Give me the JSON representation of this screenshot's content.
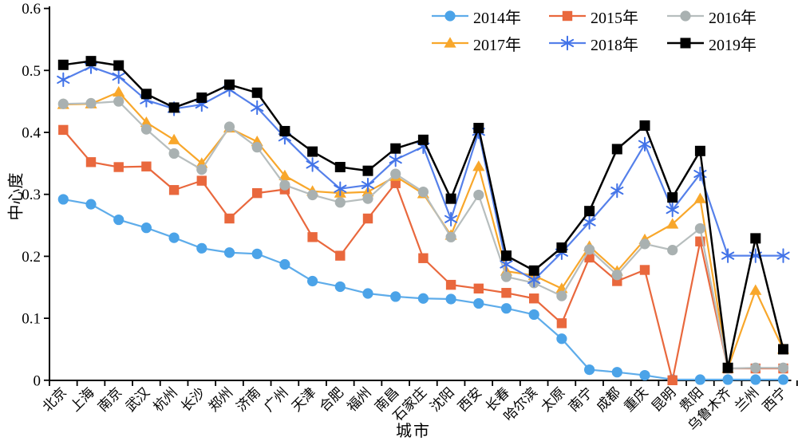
{
  "figure": {
    "background": "#ffffff",
    "axis_color": "#000000",
    "text_color": "#000000"
  },
  "chart_data": {
    "type": "line",
    "title": "",
    "xlabel": "城市",
    "ylabel": "中心度",
    "ylim": [
      0,
      0.6
    ],
    "yticks": [
      "0",
      "0.1",
      "0.2",
      "0.3",
      "0.4",
      "0.5",
      "0.6"
    ],
    "grid": false,
    "legend_position": "top-right",
    "categories": [
      "北京",
      "上海",
      "南京",
      "武汉",
      "杭州",
      "长沙",
      "郑州",
      "济南",
      "广州",
      "天津",
      "合肥",
      "福州",
      "南昌",
      "石家庄",
      "沈阳",
      "西安",
      "长春",
      "哈尔滨",
      "太原",
      "南宁",
      "成都",
      "重庆",
      "昆明",
      "贵阳",
      "乌鲁木齐",
      "兰州",
      "西宁"
    ],
    "series": [
      {
        "name": "2014年",
        "marker": "circle",
        "color": "#4BA3E8",
        "line_color": "#5EACEA",
        "values": [
          0.292,
          0.284,
          0.259,
          0.246,
          0.23,
          0.213,
          0.206,
          0.204,
          0.187,
          0.16,
          0.151,
          0.14,
          0.135,
          0.132,
          0.131,
          0.124,
          0.116,
          0.106,
          0.067,
          0.017,
          0.013,
          0.008,
          0.001,
          0.001,
          0.001,
          0.001,
          0.001
        ]
      },
      {
        "name": "2015年",
        "marker": "square",
        "color": "#E9683D",
        "line_color": "#E9683D",
        "values": [
          0.404,
          0.352,
          0.344,
          0.345,
          0.307,
          0.322,
          0.261,
          0.302,
          0.308,
          0.231,
          0.201,
          0.261,
          0.318,
          0.197,
          0.154,
          0.148,
          0.141,
          0.132,
          0.092,
          0.198,
          0.16,
          0.178,
          0.0,
          0.224,
          0.019,
          0.019,
          0.019
        ]
      },
      {
        "name": "2016年",
        "marker": "circle",
        "color": "#A9B1B1",
        "line_color": "#B7BEBE",
        "values": [
          0.446,
          0.447,
          0.45,
          0.405,
          0.366,
          0.34,
          0.409,
          0.376,
          0.315,
          0.299,
          0.287,
          0.293,
          0.333,
          0.304,
          0.231,
          0.299,
          0.167,
          0.157,
          0.136,
          0.211,
          0.17,
          0.22,
          0.21,
          0.245,
          0.019,
          0.02,
          0.02
        ]
      },
      {
        "name": "2017年",
        "marker": "triangle",
        "color": "#F8A72B",
        "line_color": "#F8A72B",
        "values": [
          0.445,
          0.446,
          0.465,
          0.416,
          0.388,
          0.35,
          0.407,
          0.385,
          0.33,
          0.305,
          0.302,
          0.304,
          0.329,
          0.301,
          0.234,
          0.345,
          0.176,
          0.169,
          0.148,
          0.216,
          0.176,
          0.227,
          0.252,
          0.293,
          0.019,
          0.145,
          0.05
        ]
      },
      {
        "name": "2018年",
        "marker": "asterisk",
        "color": "#4273E8",
        "line_color": "#5580EA",
        "values": [
          0.485,
          0.506,
          0.49,
          0.452,
          0.438,
          0.445,
          0.469,
          0.44,
          0.392,
          0.348,
          0.309,
          0.315,
          0.356,
          0.377,
          0.26,
          0.401,
          0.187,
          0.162,
          0.206,
          0.255,
          0.306,
          0.381,
          0.275,
          0.333,
          0.201,
          0.201,
          0.201
        ]
      },
      {
        "name": "2019年",
        "marker": "square",
        "color": "#000000",
        "line_color": "#000000",
        "values": [
          0.509,
          0.515,
          0.508,
          0.462,
          0.44,
          0.456,
          0.477,
          0.464,
          0.402,
          0.369,
          0.344,
          0.338,
          0.374,
          0.388,
          0.293,
          0.407,
          0.201,
          0.177,
          0.214,
          0.273,
          0.373,
          0.411,
          0.295,
          0.37,
          0.02,
          0.229,
          0.05
        ]
      }
    ]
  }
}
